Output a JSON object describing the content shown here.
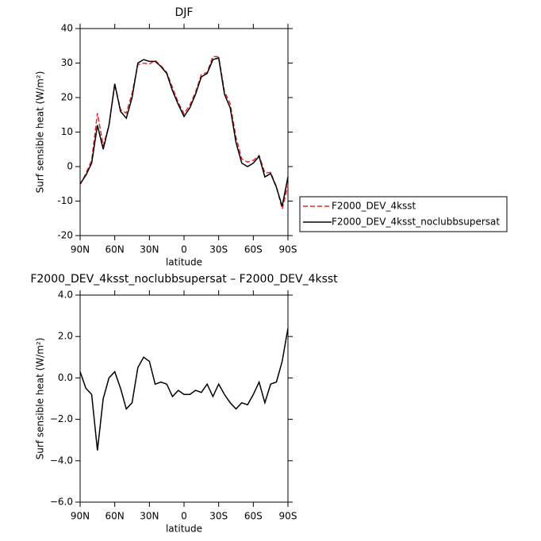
{
  "chart_data": [
    {
      "type": "line",
      "title": "DJF",
      "xlabel": "latitude",
      "ylabel": "Surf sensible heat (W/m²)",
      "x": [
        90,
        85,
        80,
        75,
        70,
        65,
        60,
        55,
        50,
        45,
        40,
        35,
        30,
        25,
        20,
        15,
        10,
        5,
        0,
        -5,
        -10,
        -15,
        -20,
        -25,
        -30,
        -35,
        -40,
        -45,
        -50,
        -55,
        -60,
        -65,
        -70,
        -75,
        -80,
        -85,
        -90
      ],
      "xlim": [
        90,
        -90
      ],
      "xticks": [
        {
          "value": 90,
          "label": "90N"
        },
        {
          "value": 60,
          "label": "60N"
        },
        {
          "value": 30,
          "label": "30N"
        },
        0,
        {
          "value": -30,
          "label": "30S"
        },
        {
          "value": -60,
          "label": "60S"
        },
        {
          "value": -90,
          "label": "90S"
        }
      ],
      "ylim": [
        -20,
        40
      ],
      "yticks": [
        -20,
        -10,
        0,
        10,
        20,
        30,
        40
      ],
      "legend": "right",
      "series": [
        {
          "name": "F2000_DEV_4ksst",
          "color": "#e8282a",
          "dashed": true,
          "values": [
            -5.3,
            -2.0,
            1.8,
            15.5,
            6.0,
            12.0,
            23.7,
            16.5,
            15.5,
            21.2,
            29.5,
            30.0,
            29.7,
            30.8,
            29.2,
            27.3,
            22.9,
            18.6,
            15.3,
            17.8,
            21.6,
            26.7,
            27.3,
            31.9,
            31.8,
            21.8,
            18.2,
            8.5,
            2.2,
            1.3,
            1.8,
            3.2,
            -1.8,
            -1.7,
            -5.8,
            -12.3,
            -5.4
          ]
        },
        {
          "name": "F2000_DEV_4ksst_noclubbsupersat",
          "color": "#000000",
          "dashed": false,
          "values": [
            -5,
            -2.5,
            1,
            12,
            5,
            12,
            24,
            16,
            14,
            20,
            30,
            31,
            30.5,
            30.5,
            29,
            27,
            22,
            18,
            14.5,
            17,
            21,
            26,
            27,
            31,
            31.5,
            21,
            17,
            7,
            1,
            0,
            1,
            3,
            -3,
            -2,
            -6,
            -11.5,
            -3
          ]
        }
      ]
    },
    {
      "type": "line",
      "title": "F2000_DEV_4ksst_noclubbsupersat – F2000_DEV_4ksst",
      "xlabel": "latitude",
      "ylabel": "Surf sensible heat (W/m²)",
      "x": [
        90,
        85,
        80,
        75,
        70,
        65,
        60,
        55,
        50,
        45,
        40,
        35,
        30,
        25,
        20,
        15,
        10,
        5,
        0,
        -5,
        -10,
        -15,
        -20,
        -25,
        -30,
        -35,
        -40,
        -45,
        -50,
        -55,
        -60,
        -65,
        -70,
        -75,
        -80,
        -85,
        -90
      ],
      "xlim": [
        90,
        -90
      ],
      "xticks": [
        {
          "value": 90,
          "label": "90N"
        },
        {
          "value": 60,
          "label": "60N"
        },
        {
          "value": 30,
          "label": "30N"
        },
        0,
        {
          "value": -30,
          "label": "30S"
        },
        {
          "value": -60,
          "label": "60S"
        },
        {
          "value": -90,
          "label": "90S"
        }
      ],
      "ylim": [
        -6,
        4
      ],
      "yticks": [
        {
          "value": -6,
          "label": "−6.0"
        },
        {
          "value": -4,
          "label": "−4.0"
        },
        {
          "value": -2,
          "label": "−2.0"
        },
        {
          "value": 0,
          "label": "0.0"
        },
        {
          "value": 2,
          "label": "2.0"
        },
        {
          "value": 4,
          "label": "4.0"
        }
      ],
      "series": [
        {
          "color": "#000000",
          "dashed": false,
          "values": [
            0.3,
            -0.5,
            -0.8,
            -3.5,
            -1.0,
            0.0,
            0.3,
            -0.5,
            -1.5,
            -1.2,
            0.5,
            1.0,
            0.8,
            -0.3,
            -0.2,
            -0.3,
            -0.9,
            -0.6,
            -0.8,
            -0.8,
            -0.6,
            -0.7,
            -0.3,
            -0.9,
            -0.3,
            -0.8,
            -1.2,
            -1.5,
            -1.2,
            -1.3,
            -0.8,
            -0.2,
            -1.2,
            -0.3,
            -0.2,
            0.8,
            2.4
          ]
        }
      ]
    }
  ]
}
